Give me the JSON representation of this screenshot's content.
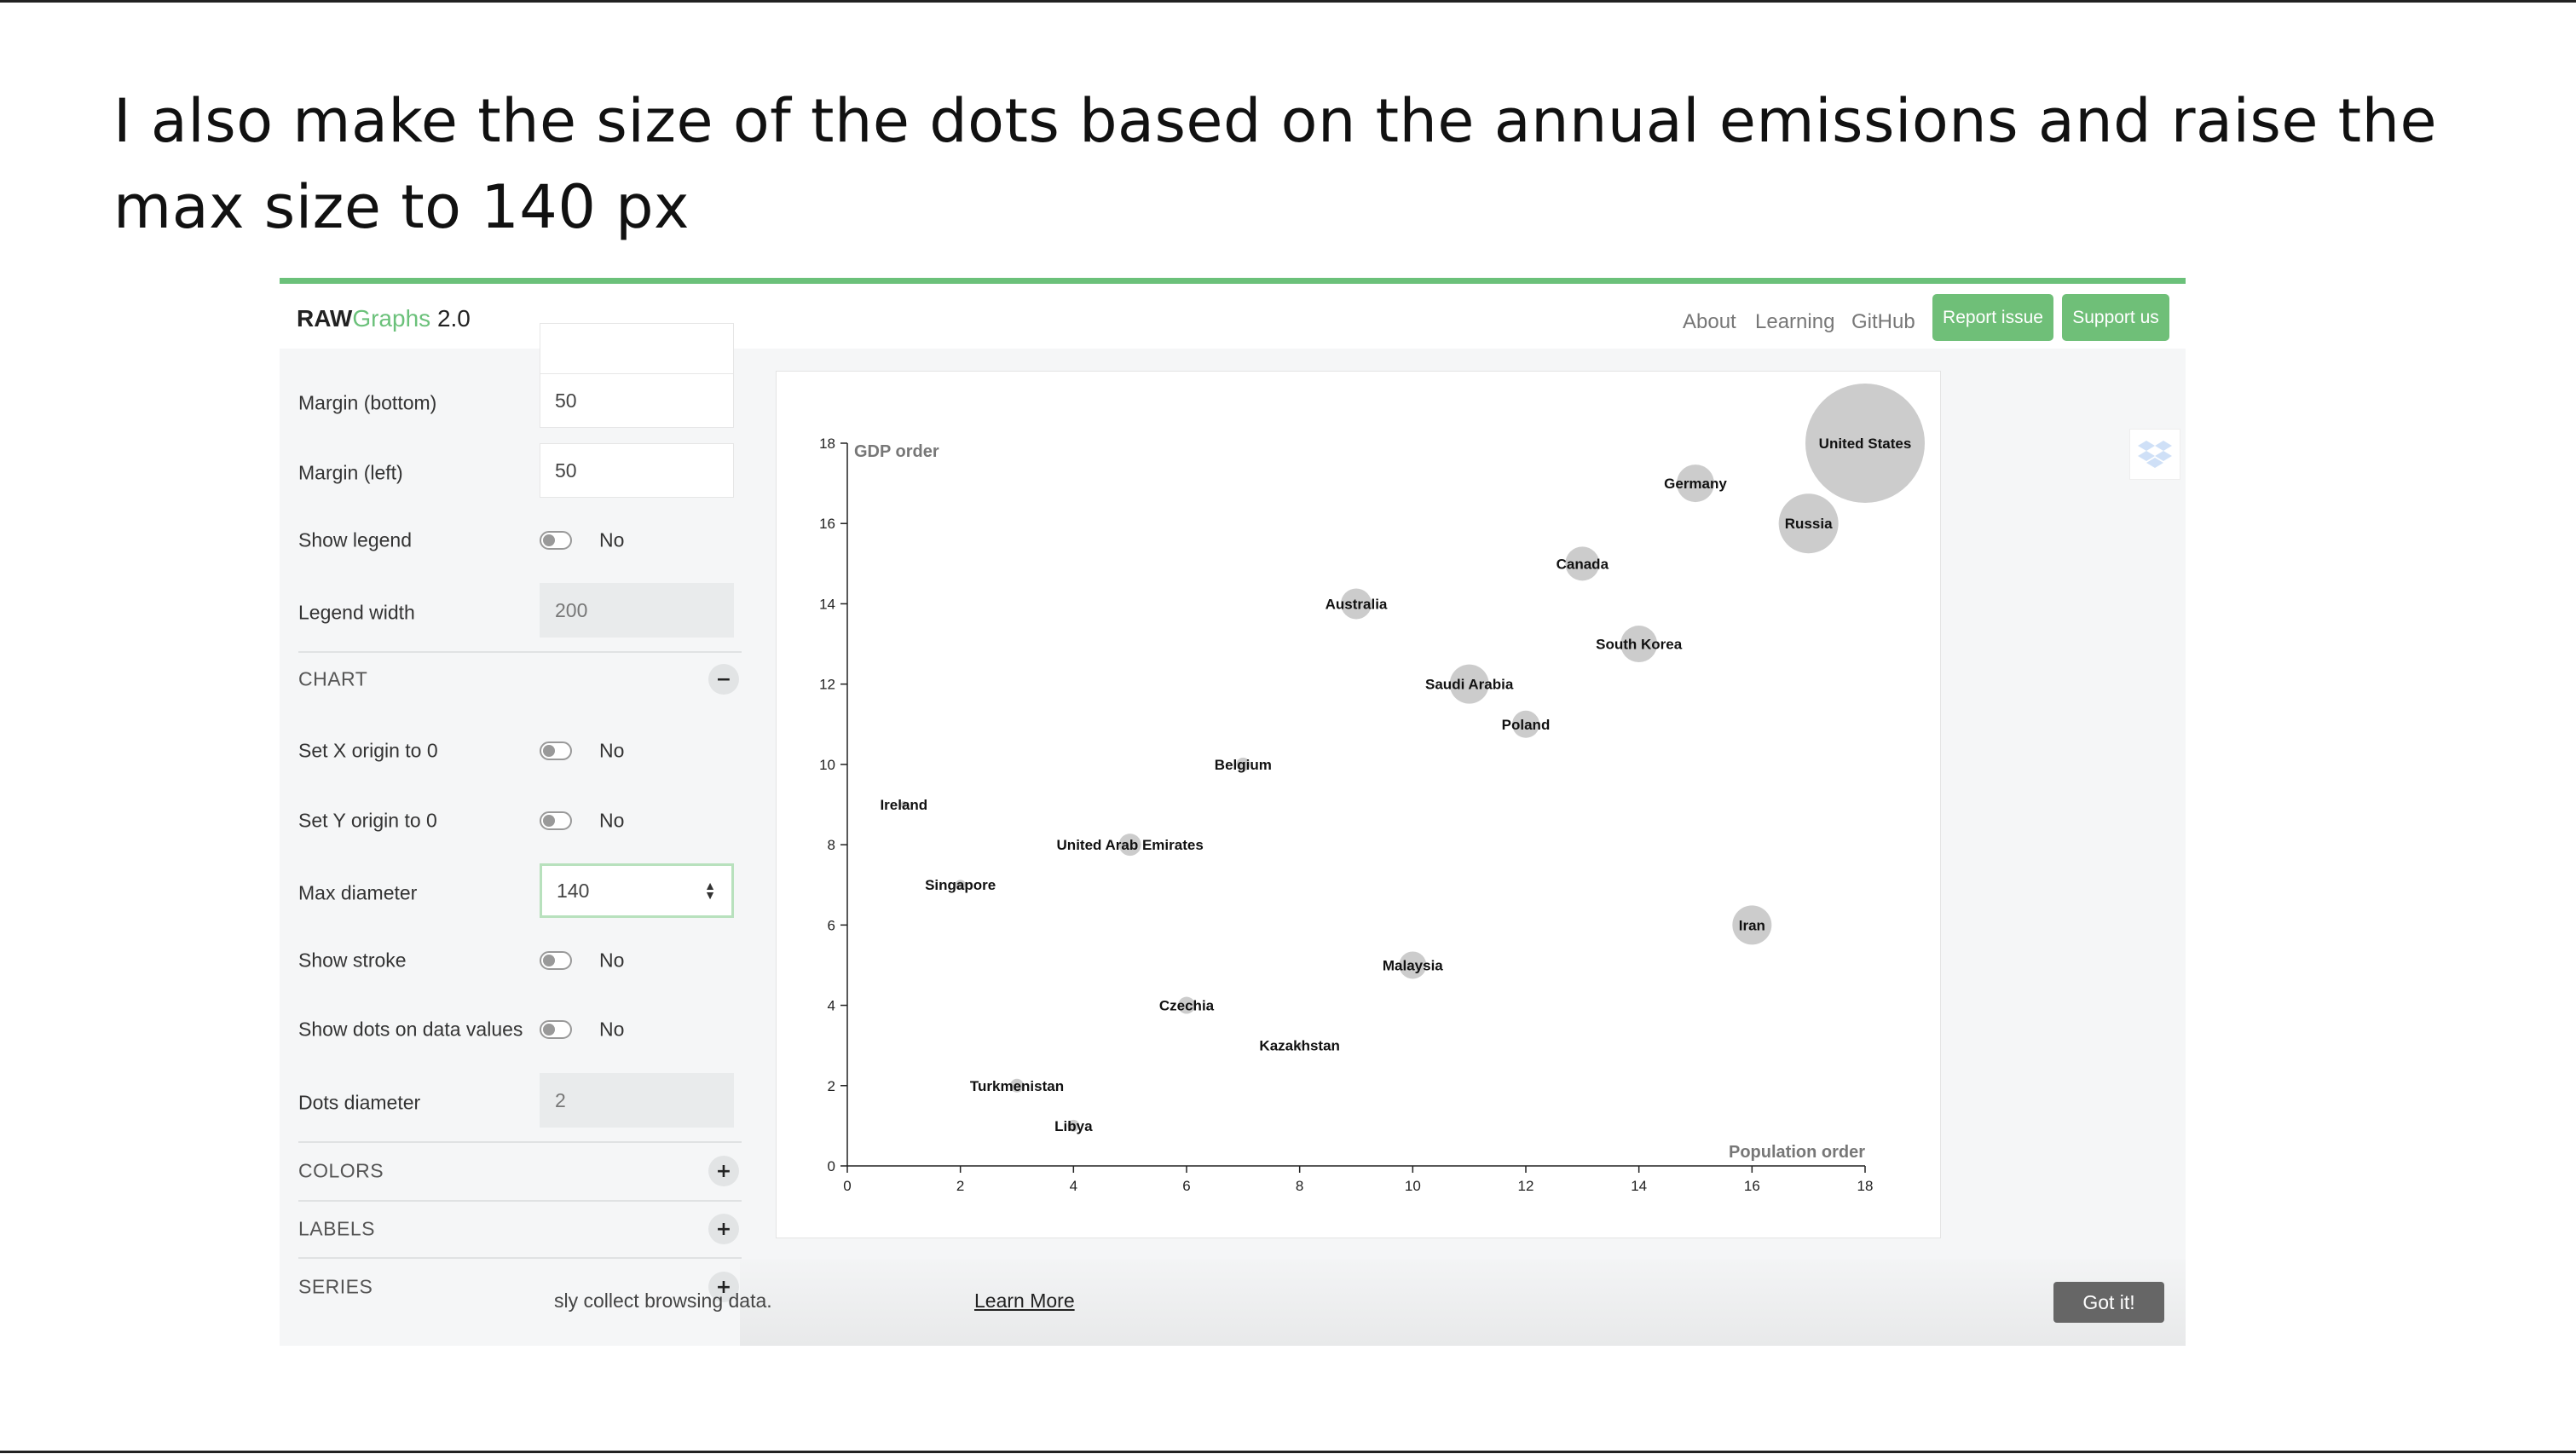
{
  "caption": "I also make the size of the dots based on the annual emissions and raise the max size to 140 px",
  "app": {
    "brand_raw": "RAW",
    "brand_graphs": "Graphs",
    "brand_version": "2.0",
    "nav": [
      "About",
      "Learning",
      "GitHub"
    ],
    "report_issue": "Report issue",
    "support_us": "Support us"
  },
  "sidebar": {
    "margin_bottom_label": "Margin (bottom)",
    "margin_bottom_value": "50",
    "margin_left_label": "Margin (left)",
    "margin_left_value": "50",
    "show_legend_label": "Show legend",
    "show_legend_value": "No",
    "legend_width_label": "Legend width",
    "legend_width_value": "200",
    "chart_section": "CHART",
    "set_x_origin_label": "Set X origin to 0",
    "set_x_origin_value": "No",
    "set_y_origin_label": "Set Y origin to 0",
    "set_y_origin_value": "No",
    "max_diameter_label": "Max diameter",
    "max_diameter_value": "140",
    "show_stroke_label": "Show stroke",
    "show_stroke_value": "No",
    "show_dots_label": "Show dots on data values",
    "show_dots_value": "No",
    "dots_diameter_label": "Dots diameter",
    "dots_diameter_value": "2",
    "colors_section": "COLORS",
    "labels_section": "LABELS",
    "series_section": "SERIES",
    "collapse_symbol": "−",
    "expand_symbol": "+"
  },
  "cookie": {
    "text": "sly collect browsing data.",
    "learn_more": "Learn More",
    "got_it": "Got it!"
  },
  "icons": {
    "dropbox": "dropbox-icon"
  },
  "colors": {
    "accent": "#6bc17a",
    "bubble": "#cccccc"
  },
  "chart_data": {
    "type": "scatter",
    "xlabel": "Population order",
    "ylabel": "GDP order",
    "xlim": [
      0,
      18
    ],
    "ylim": [
      0,
      18
    ],
    "xticks": [
      0,
      2,
      4,
      6,
      8,
      10,
      12,
      14,
      16,
      18
    ],
    "yticks": [
      0,
      2,
      4,
      6,
      8,
      10,
      12,
      14,
      16,
      18
    ],
    "max_diameter": 140,
    "points": [
      {
        "label": "United States",
        "x": 18,
        "y": 18,
        "size": 140
      },
      {
        "label": "Russia",
        "x": 17,
        "y": 16,
        "size": 70
      },
      {
        "label": "Germany",
        "x": 15,
        "y": 17,
        "size": 44
      },
      {
        "label": "Canada",
        "x": 13,
        "y": 15,
        "size": 40
      },
      {
        "label": "South Korea",
        "x": 14,
        "y": 13,
        "size": 43
      },
      {
        "label": "Australia",
        "x": 9,
        "y": 14,
        "size": 36
      },
      {
        "label": "Saudi Arabia",
        "x": 11,
        "y": 12,
        "size": 46
      },
      {
        "label": "Poland",
        "x": 12,
        "y": 11,
        "size": 32
      },
      {
        "label": "Belgium",
        "x": 7,
        "y": 10,
        "size": 16
      },
      {
        "label": "Ireland",
        "x": 1,
        "y": 9,
        "size": 8
      },
      {
        "label": "United Arab Emirates",
        "x": 5,
        "y": 8,
        "size": 26
      },
      {
        "label": "Singapore",
        "x": 2,
        "y": 7,
        "size": 12
      },
      {
        "label": "Iran",
        "x": 16,
        "y": 6,
        "size": 46
      },
      {
        "label": "Malaysia",
        "x": 10,
        "y": 5,
        "size": 32
      },
      {
        "label": "Czechia",
        "x": 6,
        "y": 4,
        "size": 20
      },
      {
        "label": "Kazakhstan",
        "x": 8,
        "y": 3,
        "size": 6
      },
      {
        "label": "Turkmenistan",
        "x": 3,
        "y": 2,
        "size": 16
      },
      {
        "label": "Libya",
        "x": 4,
        "y": 1,
        "size": 14
      }
    ]
  }
}
